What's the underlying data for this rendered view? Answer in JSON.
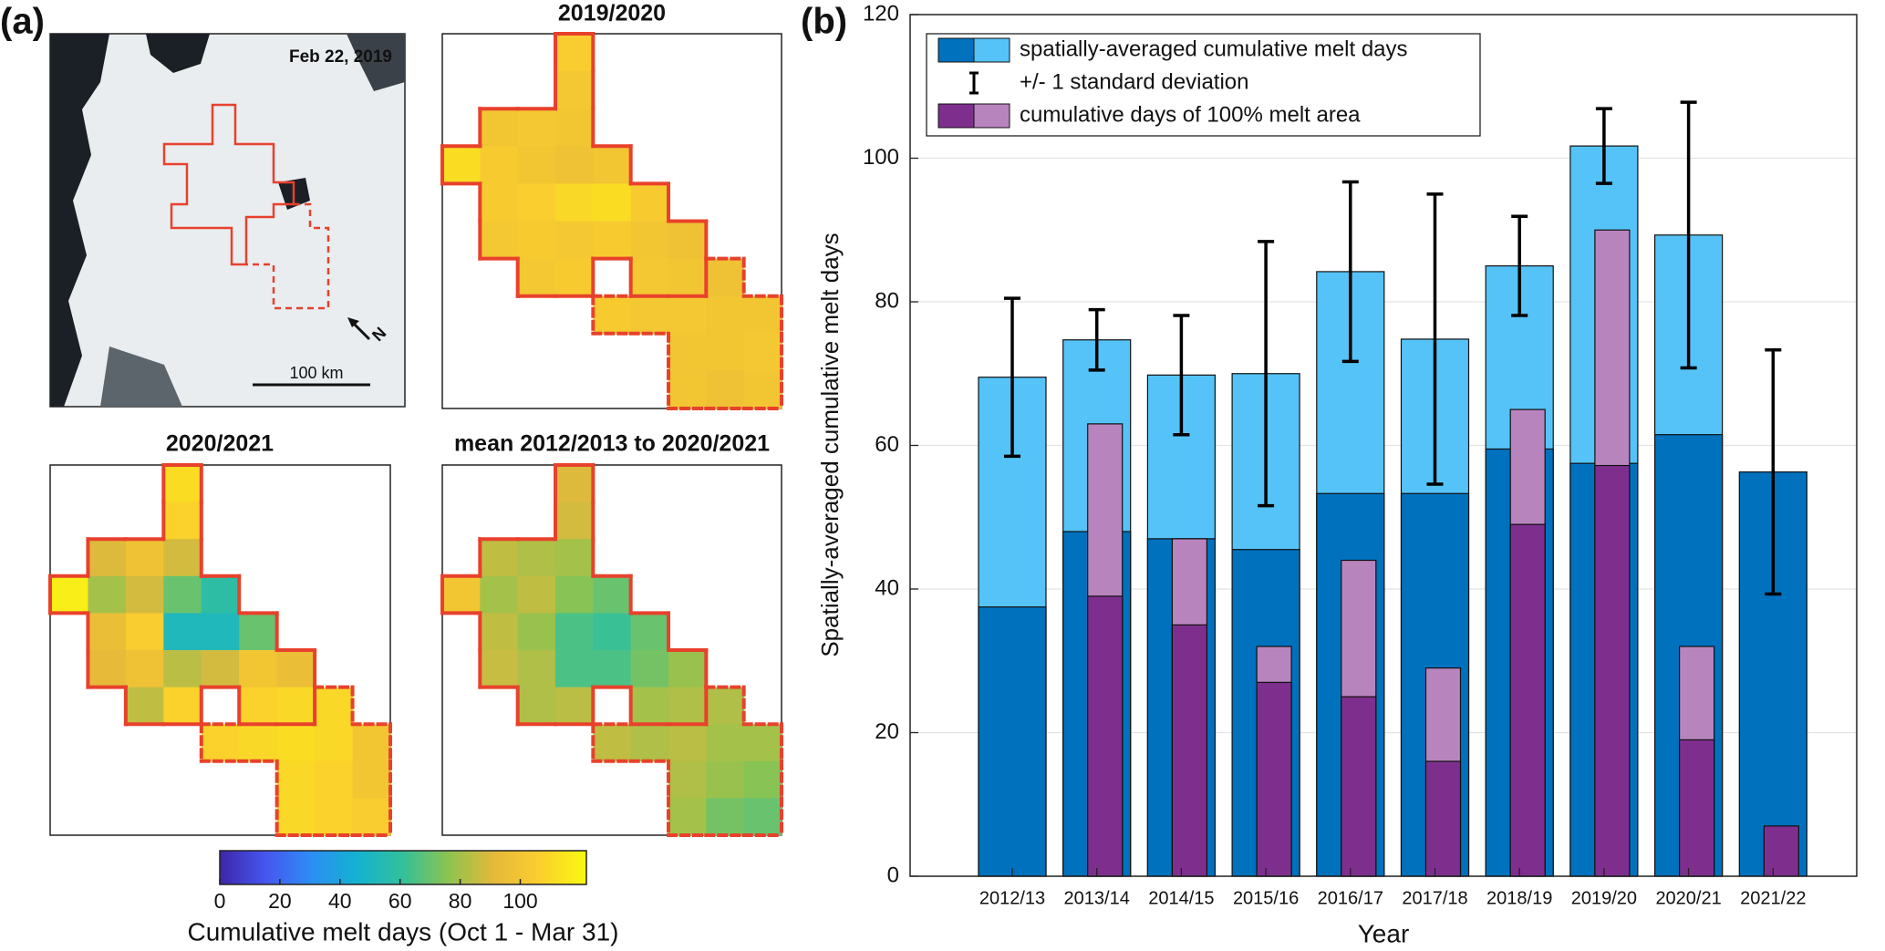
{
  "panel_labels": [
    "(a)",
    "(b)"
  ],
  "chart_data": [
    {
      "type": "image",
      "annotations": [
        "Feb 22, 2019",
        "100 km",
        "N"
      ]
    },
    {
      "type": "heatmap",
      "title": "2019/2020",
      "grid": [
        [
          null,
          null,
          null,
          105,
          null,
          null,
          null,
          null,
          null
        ],
        [
          null,
          null,
          null,
          102,
          null,
          null,
          null,
          null,
          null
        ],
        [
          null,
          100,
          102,
          100,
          null,
          null,
          null,
          null,
          null
        ],
        [
          112,
          104,
          100,
          98,
          100,
          null,
          null,
          null,
          null
        ],
        [
          null,
          104,
          106,
          110,
          112,
          104,
          null,
          null,
          null
        ],
        [
          null,
          102,
          104,
          102,
          104,
          100,
          98,
          null,
          null
        ],
        [
          null,
          null,
          102,
          104,
          null,
          102,
          100,
          98,
          null
        ],
        [
          null,
          null,
          null,
          null,
          104,
          102,
          102,
          100,
          100
        ],
        [
          null,
          null,
          null,
          null,
          null,
          null,
          100,
          100,
          102
        ],
        [
          null,
          null,
          null,
          null,
          null,
          null,
          100,
          98,
          100
        ]
      ]
    },
    {
      "type": "heatmap",
      "title": "2020/2021",
      "grid": [
        [
          null,
          null,
          null,
          112,
          null,
          null,
          null,
          null,
          null
        ],
        [
          null,
          null,
          null,
          108,
          null,
          null,
          null,
          null,
          null
        ],
        [
          null,
          90,
          98,
          88,
          null,
          null,
          null,
          null,
          null
        ],
        [
          118,
          80,
          88,
          70,
          58,
          null,
          null,
          null,
          null
        ],
        [
          null,
          95,
          105,
          52,
          52,
          70,
          null,
          null,
          null
        ],
        [
          null,
          92,
          98,
          84,
          88,
          100,
          95,
          null,
          null
        ],
        [
          null,
          null,
          85,
          108,
          null,
          108,
          110,
          110,
          null
        ],
        [
          null,
          null,
          null,
          null,
          108,
          110,
          112,
          110,
          100
        ],
        [
          null,
          null,
          null,
          null,
          null,
          null,
          110,
          108,
          100
        ],
        [
          null,
          null,
          null,
          null,
          null,
          null,
          110,
          108,
          105
        ]
      ]
    },
    {
      "type": "heatmap",
      "title": "mean 2012/2013 to 2020/2021",
      "grid": [
        [
          null,
          null,
          null,
          90,
          null,
          null,
          null,
          null,
          null
        ],
        [
          null,
          null,
          null,
          88,
          null,
          null,
          null,
          null,
          null
        ],
        [
          null,
          85,
          82,
          80,
          null,
          null,
          null,
          null,
          null
        ],
        [
          100,
          80,
          85,
          75,
          70,
          null,
          null,
          null,
          null
        ],
        [
          null,
          85,
          78,
          65,
          62,
          70,
          null,
          null,
          null
        ],
        [
          null,
          86,
          82,
          65,
          65,
          72,
          78,
          null,
          null
        ],
        [
          null,
          null,
          82,
          84,
          null,
          80,
          82,
          82,
          null
        ],
        [
          null,
          null,
          null,
          null,
          85,
          82,
          84,
          80,
          80
        ],
        [
          null,
          null,
          null,
          null,
          null,
          null,
          82,
          78,
          75
        ],
        [
          null,
          null,
          null,
          null,
          null,
          null,
          80,
          72,
          70
        ]
      ]
    },
    {
      "type": "colorbar",
      "xlim": [
        0,
        122
      ],
      "xticks": [
        0,
        20,
        40,
        60,
        80,
        100
      ],
      "xlabel": "Cumulative melt days (Oct 1 - Mar 31)",
      "colormap": [
        "#3e26a8",
        "#4656f0",
        "#2c8ef4",
        "#13b2d0",
        "#33c09a",
        "#8ec34f",
        "#e6b93a",
        "#fbcf2e",
        "#f8f90f"
      ]
    },
    {
      "type": "bar",
      "xlabel": "Year",
      "ylabel": "Spatially-averaged cumulative melt days",
      "categories": [
        "2012/13",
        "2013/14",
        "2014/15",
        "2015/16",
        "2016/17",
        "2017/18",
        "2018/19",
        "2019/20",
        "2020/21",
        "2021/22"
      ],
      "ylim": [
        0,
        120
      ],
      "yticks": [
        0,
        20,
        40,
        60,
        80,
        100,
        120
      ],
      "grid": true,
      "series": [
        {
          "name": "spatially-averaged cumulative melt days",
          "colors": [
            "#0071bd",
            "#55c3f7"
          ],
          "values": [
            37.5,
            48,
            47,
            45.5,
            53.3,
            53.3,
            59.5,
            57.5,
            61.5,
            56.3
          ],
          "values_light": [
            69.5,
            74.7,
            69.8,
            70,
            84.2,
            74.8,
            85,
            101.7,
            89.3,
            null
          ]
        },
        {
          "name": "cumulative days of 100% melt area",
          "colors": [
            "#7e2f8e",
            "#b884be"
          ],
          "values": [
            null,
            39,
            35,
            27,
            25,
            16,
            49,
            57.2,
            19,
            7
          ],
          "values_light": [
            null,
            63,
            47,
            32,
            44,
            29,
            65,
            90,
            32,
            null
          ]
        }
      ],
      "error_bars": {
        "name": "+/- 1 standard deviation",
        "errors": [
          11,
          4.2,
          8.3,
          18.4,
          12.5,
          20.2,
          6.9,
          5.2,
          18.5,
          17
        ]
      }
    }
  ]
}
